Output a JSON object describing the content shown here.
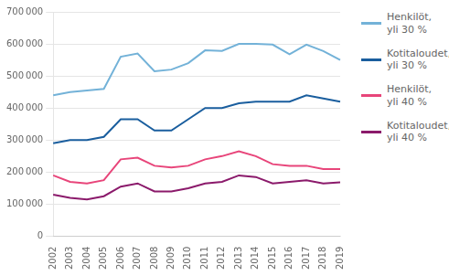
{
  "chart_data": {
    "type": "line",
    "categories": [
      2002,
      2003,
      2004,
      2005,
      2006,
      2007,
      2008,
      2009,
      2010,
      2011,
      2012,
      2013,
      2014,
      2015,
      2016,
      2017,
      2018,
      2019
    ],
    "series": [
      {
        "name": "Henkilöt,\nyli 30 %",
        "color": "#73b2d8",
        "values": [
          440000,
          450000,
          455000,
          460000,
          560000,
          570000,
          515000,
          520000,
          540000,
          580000,
          578000,
          600000,
          600000,
          598000,
          568000,
          598000,
          578000,
          550000
        ]
      },
      {
        "name": "Kotitaloudet,\nyli 30 %",
        "color": "#1a5e9e",
        "values": [
          290000,
          300000,
          300000,
          310000,
          365000,
          365000,
          330000,
          330000,
          365000,
          400000,
          400000,
          415000,
          420000,
          420000,
          420000,
          440000,
          430000,
          420000
        ]
      },
      {
        "name": "Henkilöt,\nyli 40 %",
        "color": "#e8457a",
        "values": [
          190000,
          170000,
          165000,
          175000,
          240000,
          245000,
          220000,
          215000,
          220000,
          240000,
          250000,
          265000,
          250000,
          225000,
          220000,
          220000,
          210000,
          210000
        ]
      },
      {
        "name": "Kotitaloudet,\nyli 40 %",
        "color": "#8b1a6b",
        "values": [
          130000,
          120000,
          115000,
          125000,
          155000,
          165000,
          140000,
          140000,
          150000,
          165000,
          170000,
          190000,
          185000,
          165000,
          170000,
          175000,
          165000,
          168000
        ]
      }
    ],
    "ylim": [
      0,
      700000
    ],
    "yticks": [
      0,
      {
        "value": 100000,
        "label": "100 000"
      },
      {
        "value": 200000,
        "label": "200 000"
      },
      {
        "value": 300000,
        "label": "300 000"
      },
      {
        "value": 400000,
        "label": "400 000"
      },
      {
        "value": 500000,
        "label": "500 000"
      },
      {
        "value": 600000,
        "label": "600 000"
      },
      {
        "value": 700000,
        "label": "700 000"
      }
    ],
    "grid": true,
    "legend": "right"
  }
}
